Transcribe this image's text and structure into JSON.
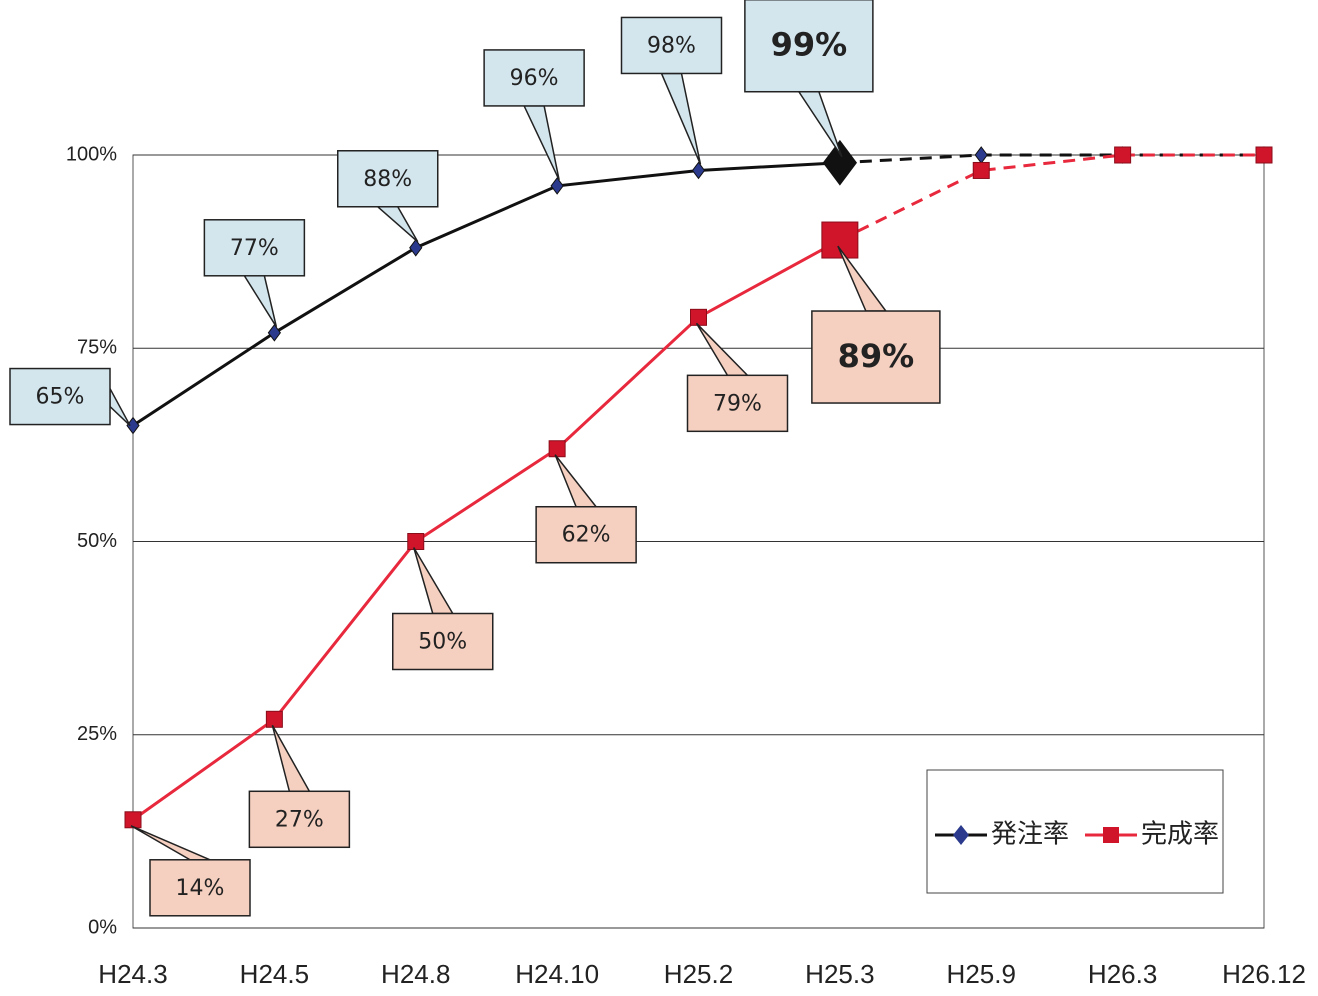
{
  "chart_data": {
    "type": "line",
    "categories": [
      "H24.3",
      "H24.5",
      "H24.8",
      "H24.10",
      "H25.2",
      "H25.3",
      "H25.9",
      "H26.3",
      "H26.12"
    ],
    "series": [
      {
        "name": "発注率",
        "color": "#2b3a8c",
        "line_color": "#111111",
        "marker": "diamond",
        "label_fill": "#d3e6ee",
        "values": [
          65,
          77,
          88,
          96,
          98,
          99,
          100,
          100,
          100
        ],
        "value_labels": [
          "65%",
          "77%",
          "88%",
          "96%",
          "98%",
          "99%",
          null,
          null,
          null
        ]
      },
      {
        "name": "完成率",
        "color": "#d0152b",
        "line_color": "#e8283c",
        "marker": "square",
        "label_fill": "#f5cfbf",
        "values": [
          14,
          27,
          50,
          62,
          79,
          89,
          98,
          100,
          100
        ],
        "value_labels": [
          "14%",
          "27%",
          "50%",
          "62%",
          "79%",
          "89%",
          null,
          null,
          null
        ]
      }
    ],
    "ylim": [
      0,
      100
    ],
    "yticks": [
      {
        "value": 0,
        "label": "0%"
      },
      {
        "value": 25,
        "label": "25%"
      },
      {
        "value": 50,
        "label": "50%"
      },
      {
        "value": 75,
        "label": "75%"
      },
      {
        "value": 100,
        "label": "100%"
      }
    ],
    "grid": true,
    "legend": "lower right"
  }
}
